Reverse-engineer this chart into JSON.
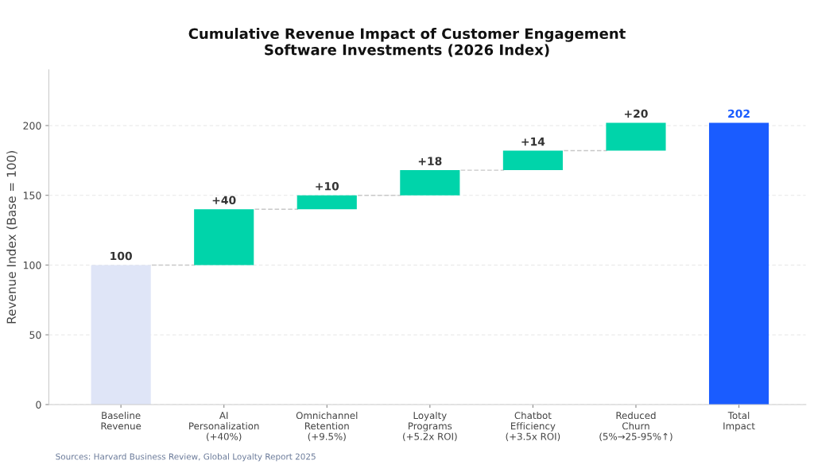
{
  "chart_data": {
    "type": "bar",
    "title": "Cumulative Revenue Impact of Customer Engagement\nSoftware Investments (2026 Index)",
    "ylabel": "Revenue Index (Base = 100)",
    "categories": [
      "Baseline\nRevenue",
      "AI\nPersonalization\n(+40%)",
      "Omnichannel\nRetention\n(+9.5%)",
      "Loyalty\nPrograms\n(+5.2x ROI)",
      "Chatbot\nEfficiency\n(+3.5x ROI)",
      "Reduced\nChurn\n(5%→25-95%↑)",
      "Total\nImpact"
    ],
    "values": [
      100,
      40,
      10,
      18,
      14,
      20,
      202
    ],
    "base": [
      0,
      100,
      140,
      150,
      168,
      182,
      0
    ],
    "colors": [
      "#dfe5f7",
      "#00d4aa",
      "#00d4aa",
      "#00d4aa",
      "#00d4aa",
      "#00d4aa",
      "#1a5cff"
    ],
    "value_labels": [
      "100",
      "+40",
      "+10",
      "+18",
      "+14",
      "+20",
      "202"
    ],
    "ylim": [
      0,
      240
    ],
    "yticks": [
      0,
      50,
      100,
      150,
      200
    ],
    "grid": "y",
    "legend": false,
    "annotations": [
      "Sources: Harvard Business Review, Global Loyalty Report 2025"
    ]
  }
}
